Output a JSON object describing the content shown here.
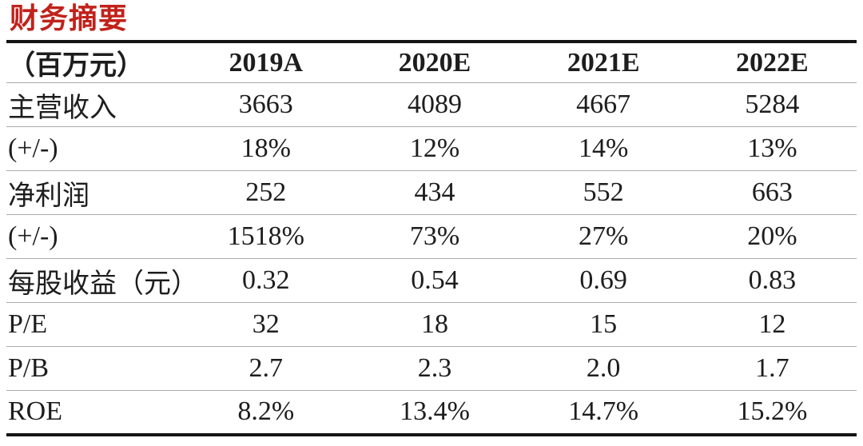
{
  "title": "财务摘要",
  "appearance": {
    "title_color": "#c0221b",
    "heavy_border_color": "#141414",
    "row_line_color": "#ababab",
    "text_color": "#1d1d1d",
    "background": "#ffffff"
  },
  "table": {
    "unit_label": "（百万元）",
    "columns": [
      "2019A",
      "2020E",
      "2021E",
      "2022E"
    ],
    "rows": [
      {
        "label": "主营收入",
        "values": [
          "3663",
          "4089",
          "4667",
          "5284"
        ]
      },
      {
        "label": "(+/-)",
        "values": [
          "18%",
          "12%",
          "14%",
          "13%"
        ]
      },
      {
        "label": "净利润",
        "values": [
          "252",
          "434",
          "552",
          "663"
        ]
      },
      {
        "label": "(+/-)",
        "values": [
          "1518%",
          "73%",
          "27%",
          "20%"
        ]
      },
      {
        "label": "每股收益（元）",
        "values": [
          "0.32",
          "0.54",
          "0.69",
          "0.83"
        ]
      },
      {
        "label": "P/E",
        "values": [
          "32",
          "18",
          "15",
          "12"
        ]
      },
      {
        "label": "P/B",
        "values": [
          "2.7",
          "2.3",
          "2.0",
          "1.7"
        ]
      },
      {
        "label": "ROE",
        "values": [
          "8.2%",
          "13.4%",
          "14.7%",
          "15.2%"
        ]
      }
    ]
  }
}
